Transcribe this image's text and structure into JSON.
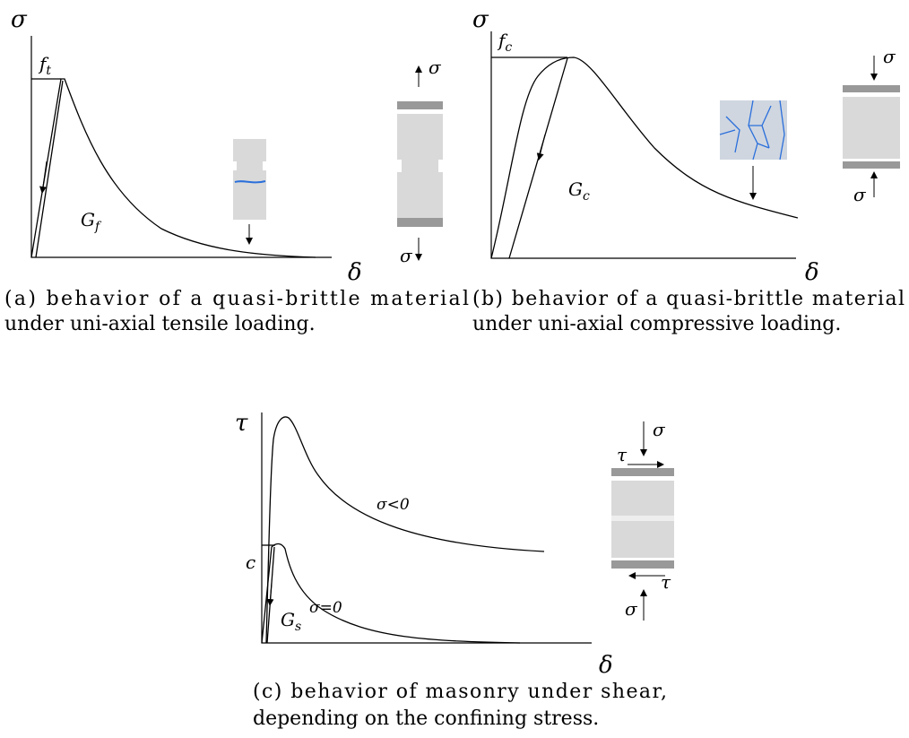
{
  "panels": [
    {
      "y_axis": "σ",
      "x_axis": "δ",
      "peak": {
        "main": "f",
        "sub": "t"
      },
      "energy": {
        "main": "G",
        "sub": "f"
      },
      "load_top": "σ",
      "load_bottom": "σ",
      "caption": [
        "(a) behavior of a quasi-brittle material",
        "under uni-axial tensile loading."
      ]
    },
    {
      "y_axis": "σ",
      "x_axis": "δ",
      "peak": {
        "main": "f",
        "sub": "c"
      },
      "energy": {
        "main": "G",
        "sub": "c"
      },
      "load_top": "σ",
      "load_bottom": "σ",
      "caption": [
        "(b) behavior of a quasi-brittle material",
        "under uni-axial compressive loading."
      ]
    },
    {
      "y_axis": "τ",
      "x_axis": "δ",
      "cohesion": "c",
      "curve_negative": "σ<0",
      "curve_zero": "σ=0",
      "energy": {
        "main": "G",
        "sub": "s"
      },
      "load_top": "σ",
      "load_bottom": "σ",
      "shear_top": "τ",
      "shear_bottom": "τ",
      "caption": [
        "(c) behavior of masonry under shear,",
        "depending on the confining stress."
      ]
    }
  ]
}
